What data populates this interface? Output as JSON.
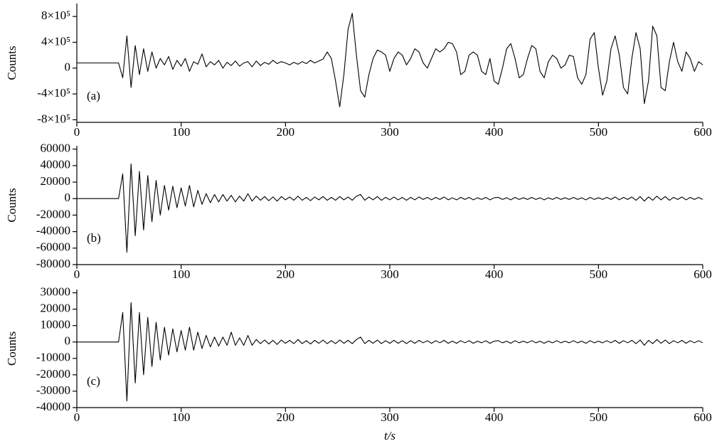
{
  "chart_data": [
    {
      "type": "line",
      "ylabel": "Counts",
      "annotation": "(a)",
      "xlim": [
        0,
        600
      ],
      "xticks": [
        0,
        100,
        200,
        300,
        400,
        500,
        600
      ],
      "ylim": [
        -840000,
        1000000
      ],
      "yticks": [
        {
          "value": -800000,
          "label": "-8×10⁵"
        },
        {
          "value": -400000,
          "label": "-4×10⁵"
        },
        0,
        {
          "value": 400000,
          "label": "4×10⁵"
        },
        {
          "value": 800000,
          "label": "8×10⁵"
        }
      ],
      "x": [
        0,
        4,
        8,
        12,
        16,
        20,
        24,
        28,
        32,
        36,
        40,
        44,
        48,
        52,
        56,
        60,
        64,
        68,
        72,
        76,
        80,
        84,
        88,
        92,
        96,
        100,
        104,
        108,
        112,
        116,
        120,
        124,
        128,
        132,
        136,
        140,
        144,
        148,
        152,
        156,
        160,
        164,
        168,
        172,
        176,
        180,
        184,
        188,
        192,
        196,
        200,
        204,
        208,
        212,
        216,
        220,
        224,
        228,
        232,
        236,
        240,
        244,
        248,
        252,
        256,
        260,
        264,
        268,
        272,
        276,
        280,
        284,
        288,
        292,
        296,
        300,
        304,
        308,
        312,
        316,
        320,
        324,
        328,
        332,
        336,
        340,
        344,
        348,
        352,
        356,
        360,
        364,
        368,
        372,
        376,
        380,
        384,
        388,
        392,
        396,
        400,
        404,
        408,
        412,
        416,
        420,
        424,
        428,
        432,
        436,
        440,
        444,
        448,
        452,
        456,
        460,
        464,
        468,
        472,
        476,
        480,
        484,
        488,
        492,
        496,
        500,
        504,
        508,
        512,
        516,
        520,
        524,
        528,
        532,
        536,
        540,
        544,
        548,
        552,
        556,
        560,
        564,
        568,
        572,
        576,
        580,
        584,
        588,
        592,
        596,
        600
      ],
      "series": [
        {
          "color": "#000000",
          "values": [
            80000,
            80000,
            80000,
            80000,
            80000,
            80000,
            80000,
            80000,
            80000,
            80000,
            80000,
            -150000,
            500000,
            -300000,
            350000,
            -100000,
            300000,
            -50000,
            250000,
            0,
            150000,
            50000,
            180000,
            -20000,
            120000,
            30000,
            150000,
            -50000,
            100000,
            60000,
            220000,
            20000,
            100000,
            50000,
            120000,
            0,
            90000,
            40000,
            110000,
            30000,
            80000,
            100000,
            20000,
            110000,
            40000,
            90000,
            60000,
            120000,
            70000,
            100000,
            80000,
            50000,
            90000,
            60000,
            100000,
            70000,
            120000,
            80000,
            110000,
            140000,
            250000,
            150000,
            -200000,
            -600000,
            -100000,
            600000,
            850000,
            200000,
            -350000,
            -450000,
            -100000,
            150000,
            280000,
            250000,
            200000,
            -50000,
            150000,
            250000,
            200000,
            50000,
            150000,
            300000,
            250000,
            80000,
            0,
            150000,
            300000,
            250000,
            300000,
            400000,
            380000,
            250000,
            -100000,
            -50000,
            200000,
            250000,
            200000,
            -50000,
            -100000,
            150000,
            -200000,
            -250000,
            0,
            300000,
            380000,
            150000,
            -150000,
            -100000,
            150000,
            350000,
            300000,
            -50000,
            -150000,
            100000,
            200000,
            150000,
            0,
            50000,
            200000,
            180000,
            -150000,
            -250000,
            -100000,
            450000,
            550000,
            0,
            -420000,
            -200000,
            300000,
            500000,
            200000,
            -300000,
            -400000,
            150000,
            550000,
            300000,
            -550000,
            -200000,
            650000,
            500000,
            -300000,
            -350000,
            100000,
            400000,
            100000,
            -50000,
            250000,
            150000,
            -50000,
            100000,
            50000
          ]
        }
      ]
    },
    {
      "type": "line",
      "ylabel": "Counts",
      "annotation": "(b)",
      "xlim": [
        0,
        600
      ],
      "xticks": [
        0,
        100,
        200,
        300,
        400,
        500,
        600
      ],
      "ylim": [
        -80000,
        64000
      ],
      "yticks": [
        -80000,
        -60000,
        -40000,
        -20000,
        0,
        20000,
        40000,
        60000
      ],
      "x": [
        0,
        4,
        8,
        12,
        16,
        20,
        24,
        28,
        32,
        36,
        40,
        44,
        48,
        52,
        56,
        60,
        64,
        68,
        72,
        76,
        80,
        84,
        88,
        92,
        96,
        100,
        104,
        108,
        112,
        116,
        120,
        124,
        128,
        132,
        136,
        140,
        144,
        148,
        152,
        156,
        160,
        164,
        168,
        172,
        176,
        180,
        184,
        188,
        192,
        196,
        200,
        204,
        208,
        212,
        216,
        220,
        224,
        228,
        232,
        236,
        240,
        244,
        248,
        252,
        256,
        260,
        264,
        268,
        272,
        276,
        280,
        284,
        288,
        292,
        296,
        300,
        304,
        308,
        312,
        316,
        320,
        324,
        328,
        332,
        336,
        340,
        344,
        348,
        352,
        356,
        360,
        364,
        368,
        372,
        376,
        380,
        384,
        388,
        392,
        396,
        400,
        404,
        408,
        412,
        416,
        420,
        424,
        428,
        432,
        436,
        440,
        444,
        448,
        452,
        456,
        460,
        464,
        468,
        472,
        476,
        480,
        484,
        488,
        492,
        496,
        500,
        504,
        508,
        512,
        516,
        520,
        524,
        528,
        532,
        536,
        540,
        544,
        548,
        552,
        556,
        560,
        564,
        568,
        572,
        576,
        580,
        584,
        588,
        592,
        596,
        600
      ],
      "series": [
        {
          "color": "#000000",
          "values": [
            0,
            0,
            0,
            0,
            0,
            0,
            0,
            0,
            0,
            0,
            0,
            30000,
            -65000,
            42000,
            -45000,
            33000,
            -38000,
            28000,
            -28000,
            22000,
            -20000,
            16000,
            -14000,
            15000,
            -11000,
            13000,
            -9000,
            16000,
            -10000,
            10000,
            -7000,
            6000,
            -5000,
            5000,
            -4000,
            5000,
            -3000,
            4000,
            -4000,
            3000,
            -3000,
            6000,
            -3000,
            3000,
            -2000,
            2500,
            -2500,
            2000,
            -3000,
            2500,
            -1500,
            2000,
            -2000,
            3000,
            -2000,
            1500,
            -2500,
            2000,
            -1500,
            2500,
            -2000,
            1500,
            -2000,
            2500,
            -1500,
            2000,
            -2000,
            3000,
            5000,
            -2000,
            2000,
            -1500,
            2500,
            -2000,
            1500,
            -1500,
            2000,
            -1500,
            1500,
            -2000,
            1500,
            -1500,
            2000,
            -1000,
            1500,
            -1500,
            1500,
            -1000,
            2000,
            -1500,
            1000,
            -1500,
            1500,
            -1000,
            1500,
            -1500,
            1000,
            -1000,
            1500,
            -1500,
            1000,
            1500,
            -1000,
            1000,
            -1500,
            1500,
            -1000,
            1000,
            -1000,
            1500,
            -1000,
            1000,
            -1500,
            1000,
            -1000,
            1500,
            -1000,
            1000,
            -1000,
            1500,
            -1000,
            1000,
            -1500,
            1500,
            -1000,
            1000,
            -1000,
            1500,
            -1000,
            2000,
            -1500,
            1500,
            -1000,
            2000,
            -2000,
            2500,
            -3000,
            2000,
            -2000,
            3000,
            -1500,
            2500,
            -2000,
            1500,
            -1000,
            2000,
            -1500,
            1500,
            -1000,
            1500,
            -1000
          ]
        }
      ]
    },
    {
      "type": "line",
      "ylabel": "Counts",
      "annotation": "(c)",
      "xlabel": "t/s",
      "xlim": [
        0,
        600
      ],
      "xticks": [
        0,
        100,
        200,
        300,
        400,
        500,
        600
      ],
      "ylim": [
        -40000,
        32000
      ],
      "yticks": [
        -40000,
        -30000,
        -20000,
        -10000,
        0,
        10000,
        20000,
        30000
      ],
      "x": [
        0,
        4,
        8,
        12,
        16,
        20,
        24,
        28,
        32,
        36,
        40,
        44,
        48,
        52,
        56,
        60,
        64,
        68,
        72,
        76,
        80,
        84,
        88,
        92,
        96,
        100,
        104,
        108,
        112,
        116,
        120,
        124,
        128,
        132,
        136,
        140,
        144,
        148,
        152,
        156,
        160,
        164,
        168,
        172,
        176,
        180,
        184,
        188,
        192,
        196,
        200,
        204,
        208,
        212,
        216,
        220,
        224,
        228,
        232,
        236,
        240,
        244,
        248,
        252,
        256,
        260,
        264,
        268,
        272,
        276,
        280,
        284,
        288,
        292,
        296,
        300,
        304,
        308,
        312,
        316,
        320,
        324,
        328,
        332,
        336,
        340,
        344,
        348,
        352,
        356,
        360,
        364,
        368,
        372,
        376,
        380,
        384,
        388,
        392,
        396,
        400,
        404,
        408,
        412,
        416,
        420,
        424,
        428,
        432,
        436,
        440,
        444,
        448,
        452,
        456,
        460,
        464,
        468,
        472,
        476,
        480,
        484,
        488,
        492,
        496,
        500,
        504,
        508,
        512,
        516,
        520,
        524,
        528,
        532,
        536,
        540,
        544,
        548,
        552,
        556,
        560,
        564,
        568,
        572,
        576,
        580,
        584,
        588,
        592,
        596,
        600
      ],
      "series": [
        {
          "color": "#000000",
          "values": [
            0,
            0,
            0,
            0,
            0,
            0,
            0,
            0,
            0,
            0,
            0,
            18000,
            -36000,
            24000,
            -25000,
            18000,
            -20000,
            15000,
            -15000,
            12000,
            -11000,
            9000,
            -8000,
            8000,
            -6000,
            7000,
            -5000,
            9000,
            -5000,
            6000,
            -4000,
            4000,
            -3000,
            3000,
            -2500,
            3000,
            -2000,
            6000,
            -2000,
            2500,
            -2000,
            4000,
            -2000,
            1500,
            -1000,
            1200,
            -1200,
            1000,
            -1500,
            1200,
            -800,
            1000,
            -1000,
            1500,
            -1000,
            800,
            -1200,
            1000,
            -800,
            1200,
            -1000,
            800,
            -1000,
            1200,
            -800,
            1000,
            -1000,
            1500,
            3000,
            -1000,
            1000,
            -800,
            1200,
            -1000,
            800,
            -800,
            1000,
            -800,
            800,
            -1000,
            800,
            -800,
            1000,
            -500,
            800,
            -800,
            800,
            -500,
            1000,
            -800,
            500,
            -800,
            800,
            -500,
            800,
            -800,
            500,
            -500,
            800,
            -800,
            500,
            800,
            -500,
            500,
            -800,
            800,
            -500,
            500,
            -500,
            800,
            -500,
            500,
            -800,
            500,
            -500,
            800,
            -500,
            500,
            -500,
            800,
            -500,
            500,
            -800,
            800,
            -500,
            500,
            -500,
            800,
            -500,
            1000,
            -800,
            800,
            -500,
            1000,
            -1000,
            1200,
            -2000,
            1000,
            -1000,
            1500,
            -800,
            1200,
            -1000,
            800,
            -500,
            1000,
            -800,
            800,
            -500,
            800,
            -500
          ]
        }
      ]
    }
  ]
}
